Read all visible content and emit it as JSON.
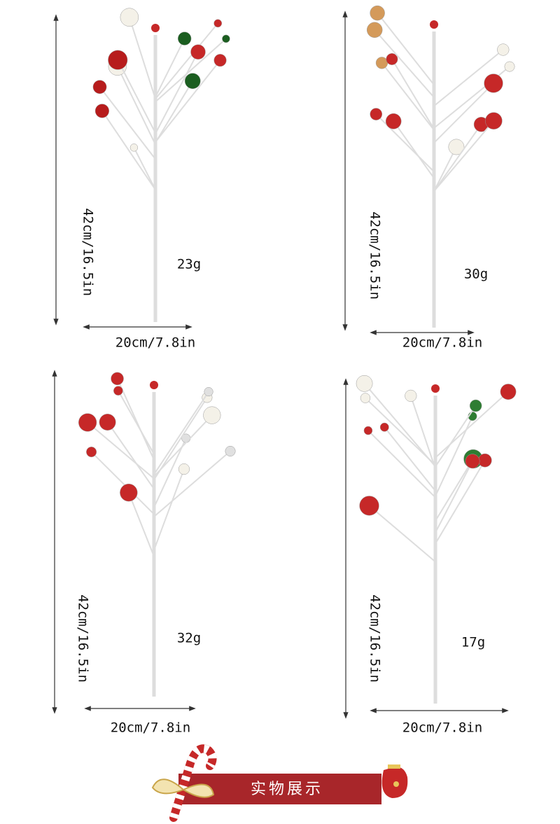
{
  "panels": [
    {
      "height_label": "42cm/16.5in",
      "width_label": "20cm/7.8in",
      "weight": "23g"
    },
    {
      "height_label": "42cm/16.5in",
      "width_label": "20cm/7.8in",
      "weight": "30g"
    },
    {
      "height_label": "42cm/16.5in",
      "width_label": "20cm/7.8in",
      "weight": "32g"
    },
    {
      "height_label": "42cm/16.5in",
      "width_label": "20cm/7.8in",
      "weight": "17g"
    }
  ],
  "banner": {
    "title": "实物展示"
  }
}
